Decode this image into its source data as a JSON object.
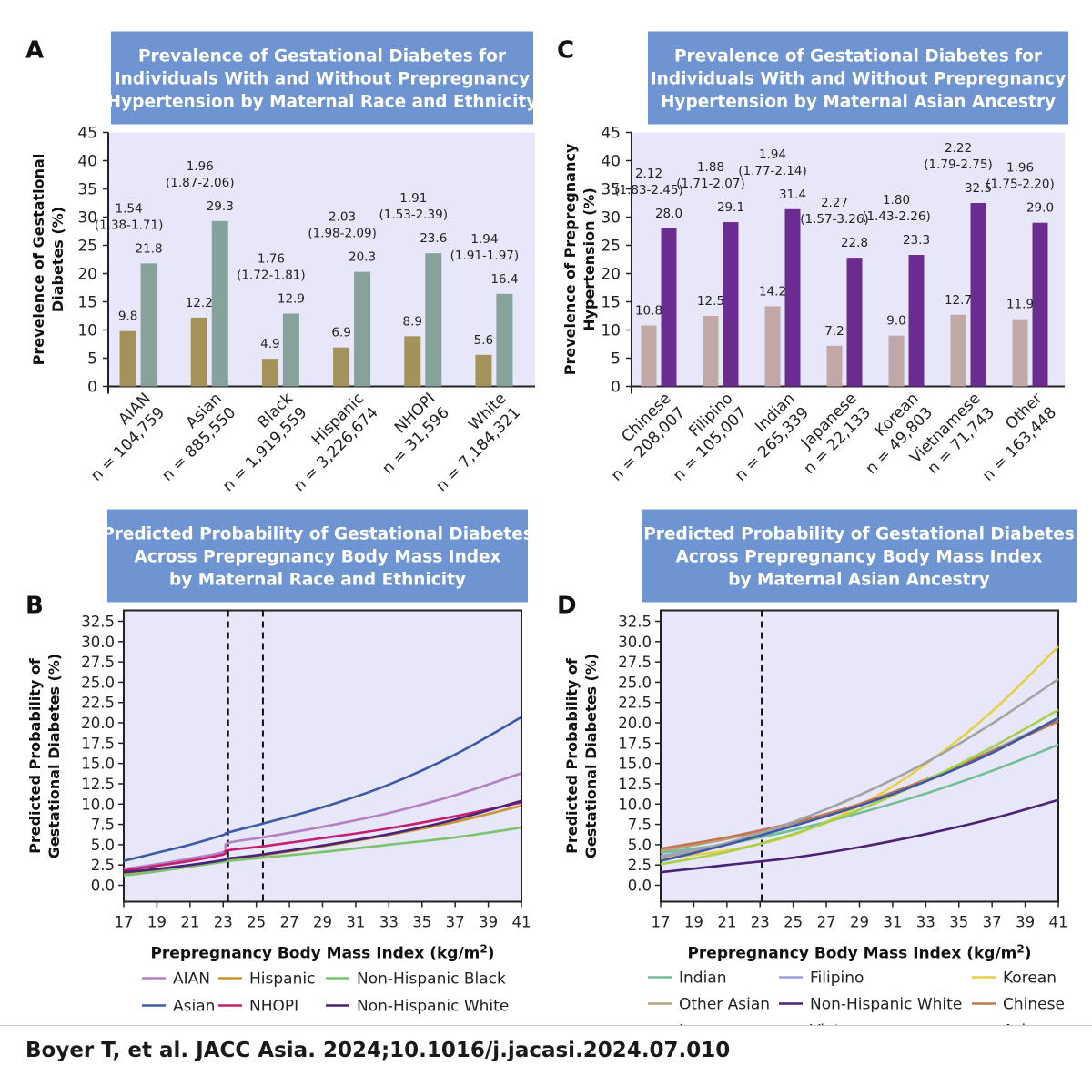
{
  "citation": "Boyer T, et al. JACC Asia. 2024;10.1016/j.jacasi.2024.07.010",
  "colors": {
    "title_box": "#6e94d2",
    "plot_bg": "#e7e7f9",
    "bar_A_without": "#a3935a",
    "bar_A_with": "#86a29a",
    "bar_C_without": "#bfa8a6",
    "bar_C_with": "#6b2c91"
  },
  "chart_data": [
    {
      "panel": "A",
      "type": "bar",
      "title": [
        "Prevalence of Gestational Diabetes for",
        "Individuals With and Without Prepregnancy",
        "Hypertension by Maternal Race and Ethnicity"
      ],
      "ylabel": [
        "Prevelence of Gestational",
        "Diabetes (%)"
      ],
      "ylim": [
        0,
        45
      ],
      "yticks": [
        "0",
        "5",
        "10",
        "15",
        "20",
        "25",
        "30",
        "35",
        "40",
        "45"
      ],
      "categories": [
        {
          "name": "AIAN",
          "n": "n = 104,759",
          "without": 9.8,
          "with": 21.8,
          "without_label": "9.8",
          "with_label": "21.8",
          "ratio": "1.54",
          "ci": "(1.38-1.71)"
        },
        {
          "name": "Asian",
          "n": "n = 885,550",
          "without": 12.2,
          "with": 29.3,
          "without_label": "12.2",
          "with_label": "29.3",
          "ratio": "1.96",
          "ci": "(1.87-2.06)"
        },
        {
          "name": "Black",
          "n": "n = 1,919,559",
          "without": 4.9,
          "with": 12.9,
          "without_label": "4.9",
          "with_label": "12.9",
          "ratio": "1.76",
          "ci": "(1.72-1.81)"
        },
        {
          "name": "Hispanic",
          "n": "n = 3,226,674",
          "without": 6.9,
          "with": 20.3,
          "without_label": "6.9",
          "with_label": "20.3",
          "ratio": "2.03",
          "ci": "(1.98-2.09)"
        },
        {
          "name": "NHOPI",
          "n": "n = 31,596",
          "without": 8.9,
          "with": 23.6,
          "without_label": "8.9",
          "with_label": "23.6",
          "ratio": "1.91",
          "ci": "(1.53-2.39)"
        },
        {
          "name": "White",
          "n": "n = 7,184,321",
          "without": 5.6,
          "with": 16.4,
          "without_label": "5.6",
          "with_label": "16.4",
          "ratio": "1.94",
          "ci": "(1.91-1.97)"
        }
      ]
    },
    {
      "panel": "C",
      "type": "bar",
      "title": [
        "Prevalence of Gestational Diabetes for",
        "Individuals With and Without Prepregnancy",
        "Hypertension by Maternal Asian Ancestry"
      ],
      "ylabel": [
        "Prevelence of Prepregnancy",
        "Hypertension (%)"
      ],
      "ylim": [
        0,
        45
      ],
      "yticks": [
        "0",
        "5",
        "10",
        "15",
        "20",
        "25",
        "30",
        "35",
        "40",
        "45"
      ],
      "categories": [
        {
          "name": "Chinese",
          "n": "n = 208,007",
          "without": 10.8,
          "with": 28.0,
          "without_label": "10.8",
          "with_label": "28.0",
          "ratio": "2.12",
          "ci": "(1.83-2.45)"
        },
        {
          "name": "Filipino",
          "n": "n = 105,007",
          "without": 12.5,
          "with": 29.1,
          "without_label": "12.5",
          "with_label": "29.1",
          "ratio": "1.88",
          "ci": "(1.71-2.07)"
        },
        {
          "name": "Indian",
          "n": "n = 265,339",
          "without": 14.2,
          "with": 31.4,
          "without_label": "14.2",
          "with_label": "31.4",
          "ratio": "1.94",
          "ci": "(1.77-2.14)"
        },
        {
          "name": "Japanese",
          "n": "n = 22,133",
          "without": 7.2,
          "with": 22.8,
          "without_label": "7.2",
          "with_label": "22.8",
          "ratio": "2.27",
          "ci": "(1.57-3.26)"
        },
        {
          "name": "Korean",
          "n": "n = 49,803",
          "without": 9.0,
          "with": 23.3,
          "without_label": "9.0",
          "with_label": "23.3",
          "ratio": "1.80",
          "ci": "(1.43-2.26)"
        },
        {
          "name": "Vietnamese",
          "n": "n = 71,743",
          "without": 12.7,
          "with": 32.5,
          "without_label": "12.7",
          "with_label": "32.5",
          "ratio": "2.22",
          "ci": "(1.79-2.75)"
        },
        {
          "name": "Other",
          "n": "n = 163,448",
          "without": 11.9,
          "with": 29.0,
          "without_label": "11.9",
          "with_label": "29.0",
          "ratio": "1.96",
          "ci": "(1.75-2.20)"
        }
      ]
    },
    {
      "panel": "B",
      "type": "line",
      "title": [
        "Predicted Probability of Gestational Diabetes",
        "Across Prepregnancy Body Mass Index",
        "by Maternal Race and Ethnicity"
      ],
      "ylabel": [
        "Predicted Probability of",
        "Gestational Diabetes (%)"
      ],
      "xlabel": "Prepregnancy Body Mass Index (kg/m",
      "xlabel_sup": "2",
      "xlabel_end": ")",
      "xlim": [
        17,
        41
      ],
      "ylim": [
        0,
        32.5
      ],
      "xticks": [
        "17",
        "19",
        "21",
        "23",
        "25",
        "27",
        "29",
        "31",
        "33",
        "35",
        "37",
        "39",
        "41"
      ],
      "yticks": [
        "0.0",
        "2.5",
        "5.0",
        "7.5",
        "10.0",
        "12.5",
        "15.0",
        "17.5",
        "20.0",
        "22.5",
        "25.0",
        "27.5",
        "30.0",
        "32.5"
      ],
      "reference_lines": [
        23.3,
        25.4
      ],
      "series": [
        {
          "name": "AIAN",
          "color": "#b57fc4",
          "x": [
            17,
            19,
            21,
            23,
            23.3,
            25.4,
            29,
            33,
            37,
            41
          ],
          "y": [
            2.0,
            2.6,
            3.3,
            4.1,
            5.2,
            5.9,
            7.2,
            8.9,
            11.1,
            13.8
          ]
        },
        {
          "name": "Asian",
          "color": "#3c5aa6",
          "x": [
            17,
            19,
            21,
            23,
            23.3,
            25.4,
            29,
            33,
            37,
            41
          ],
          "y": [
            3.0,
            4.0,
            5.0,
            6.2,
            6.5,
            7.6,
            9.6,
            12.4,
            16.1,
            20.7
          ]
        },
        {
          "name": "Hispanic",
          "color": "#c8952e",
          "x": [
            17,
            19,
            21,
            23,
            23.3,
            25.4,
            29,
            33,
            37,
            41
          ],
          "y": [
            1.3,
            1.8,
            2.3,
            2.9,
            3.1,
            3.7,
            4.8,
            6.2,
            7.8,
            9.8
          ]
        },
        {
          "name": "NHOPI",
          "color": "#c41e6e",
          "x": [
            17,
            19,
            21,
            23,
            23.3,
            25.4,
            29,
            33,
            37,
            41
          ],
          "y": [
            1.8,
            2.4,
            3.0,
            3.8,
            4.3,
            4.8,
            5.8,
            7.0,
            8.5,
            10.2
          ]
        },
        {
          "name": "Non-Hispanic Black",
          "color": "#7bc36c",
          "x": [
            17,
            19,
            21,
            23,
            23.3,
            25.4,
            29,
            33,
            37,
            41
          ],
          "y": [
            1.2,
            1.7,
            2.3,
            2.9,
            3.0,
            3.4,
            4.1,
            5.0,
            5.9,
            7.1
          ]
        },
        {
          "name": "Non-Hispanic White",
          "color": "#4a2278",
          "x": [
            17,
            19,
            21,
            23,
            23.3,
            25.4,
            29,
            33,
            37,
            41
          ],
          "y": [
            1.6,
            2.0,
            2.5,
            3.1,
            3.3,
            3.8,
            4.9,
            6.3,
            8.1,
            10.4
          ]
        }
      ],
      "legend": [
        "AIAN",
        "Hispanic",
        "Non-Hispanic Black",
        "Asian",
        "NHOPI",
        "Non-Hispanic White"
      ]
    },
    {
      "panel": "D",
      "type": "line",
      "title": [
        "Predicted Probability of Gestational Diabetes",
        "Across Prepregnancy Body Mass Index",
        "by Maternal Asian Ancestry"
      ],
      "ylabel": [
        "Predicted Probability of",
        "Gestational Diabetes (%)"
      ],
      "xlabel": "Prepregnancy Body Mass Index (kg/m",
      "xlabel_sup": "2",
      "xlabel_end": ")",
      "xlim": [
        17,
        41
      ],
      "ylim": [
        0,
        32.5
      ],
      "xticks": [
        "17",
        "19",
        "21",
        "23",
        "25",
        "27",
        "29",
        "31",
        "33",
        "35",
        "37",
        "39",
        "41"
      ],
      "yticks": [
        "0.0",
        "2.5",
        "5.0",
        "7.5",
        "10.0",
        "12.5",
        "15.0",
        "17.5",
        "20.0",
        "22.5",
        "25.0",
        "27.5",
        "30.0",
        "32.5"
      ],
      "reference_lines": [
        23.1
      ],
      "series": [
        {
          "name": "Indian",
          "color": "#72bf94",
          "x": [
            17,
            21,
            25,
            29,
            33,
            37,
            41
          ],
          "y": [
            4.0,
            5.1,
            6.8,
            8.9,
            11.3,
            14.1,
            17.3
          ]
        },
        {
          "name": "Filipino",
          "color": "#9aa3d8",
          "x": [
            17,
            21,
            25,
            29,
            33,
            37,
            41
          ],
          "y": [
            3.6,
            5.2,
            7.4,
            10.0,
            13.0,
            16.6,
            20.5
          ]
        },
        {
          "name": "Korean",
          "color": "#e8cf48",
          "x": [
            17,
            21,
            25,
            29,
            33,
            37,
            41
          ],
          "y": [
            3.3,
            4.3,
            6.2,
            9.8,
            14.9,
            21.4,
            29.4
          ]
        },
        {
          "name": "Other Asian",
          "color": "#b5a57e",
          "x": [
            17,
            21,
            25,
            29,
            33,
            37,
            41
          ],
          "y": [
            4.2,
            5.7,
            7.6,
            9.9,
            12.8,
            16.4,
            20.6
          ]
        },
        {
          "name": "Non-Hispanic White",
          "color": "#4a2278",
          "x": [
            17,
            21,
            25,
            29,
            33,
            37,
            41
          ],
          "y": [
            1.6,
            2.5,
            3.4,
            4.7,
            6.3,
            8.2,
            10.5
          ]
        },
        {
          "name": "Chinese",
          "color": "#c47550",
          "x": [
            17,
            21,
            25,
            29,
            33,
            37,
            41
          ],
          "y": [
            4.5,
            5.9,
            7.7,
            10.0,
            13.0,
            16.5,
            20.2
          ]
        },
        {
          "name": "Japanese",
          "color": "#a9cf4c",
          "x": [
            17,
            21,
            25,
            29,
            33,
            37,
            41
          ],
          "y": [
            2.6,
            4.1,
            6.3,
            9.3,
            12.9,
            17.0,
            21.6
          ]
        },
        {
          "name": "Vietnamese",
          "color": "#a3a3a3",
          "x": [
            17,
            21,
            25,
            29,
            33,
            37,
            41
          ],
          "y": [
            3.4,
            5.2,
            7.8,
            11.1,
            15.1,
            19.9,
            25.4
          ]
        },
        {
          "name": "Asian",
          "color": "#3c5aa6",
          "x": [
            17,
            21,
            25,
            29,
            33,
            37,
            41
          ],
          "y": [
            3.0,
            5.0,
            7.3,
            9.8,
            12.8,
            16.3,
            20.6
          ]
        }
      ],
      "legend": [
        "Indian",
        "Filipino",
        "Korean",
        "Other Asian",
        "Non-Hispanic White",
        "Chinese",
        "Japanese",
        "Vietnamese",
        "Asian"
      ]
    }
  ]
}
